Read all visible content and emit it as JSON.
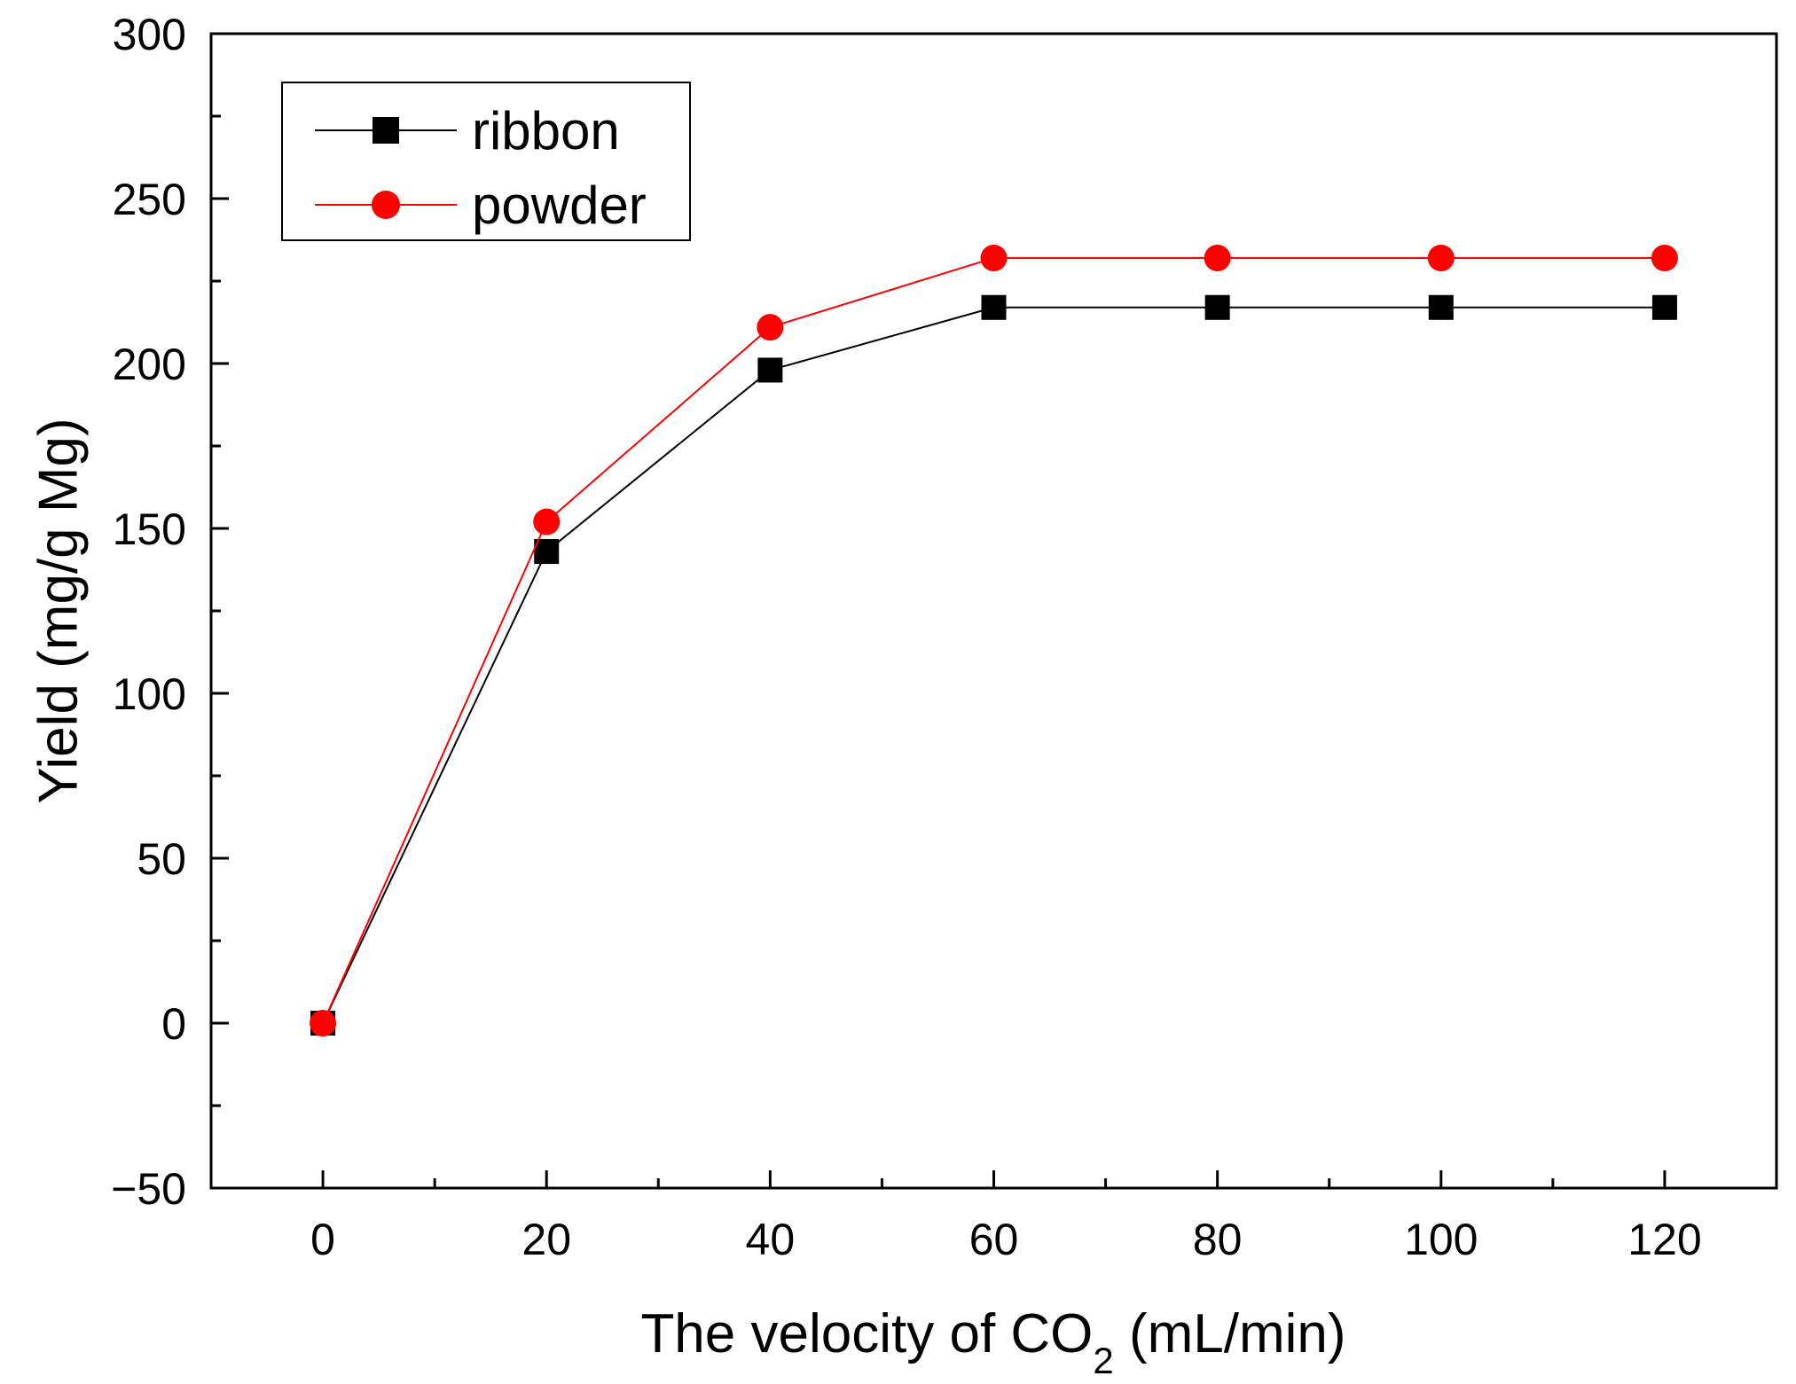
{
  "chart_data": {
    "type": "line",
    "title": "",
    "xlabel_main": "The velocity of CO",
    "xlabel_sub": "2",
    "xlabel_tail": " (mL/min)",
    "ylabel": "Yield (mg/g Mg)",
    "x": [
      0,
      20,
      40,
      60,
      80,
      100,
      120
    ],
    "xlim": [
      -10,
      130
    ],
    "ylim": [
      -50,
      300
    ],
    "xticks": [
      0,
      20,
      40,
      60,
      80,
      100,
      120
    ],
    "xticks_minor": [
      10,
      30,
      50,
      70,
      90,
      110
    ],
    "yticks": [
      -50,
      0,
      50,
      100,
      150,
      200,
      250,
      300
    ],
    "yticks_minor": [
      -25,
      25,
      75,
      125,
      175,
      225,
      275
    ],
    "xtick_labels": [
      "0",
      "20",
      "40",
      "60",
      "80",
      "100",
      "120"
    ],
    "ytick_labels": [
      "−50",
      "0",
      "50",
      "100",
      "150",
      "200",
      "250",
      "300"
    ],
    "legend_position": "top-left",
    "series": [
      {
        "name": "ribbon",
        "marker": "square",
        "color": "#000000",
        "values": [
          0,
          143,
          198,
          217,
          217,
          217,
          217
        ]
      },
      {
        "name": "powder",
        "marker": "circle",
        "color": "#ff0000",
        "values": [
          0,
          152,
          211,
          232,
          232,
          232,
          232
        ]
      }
    ]
  }
}
